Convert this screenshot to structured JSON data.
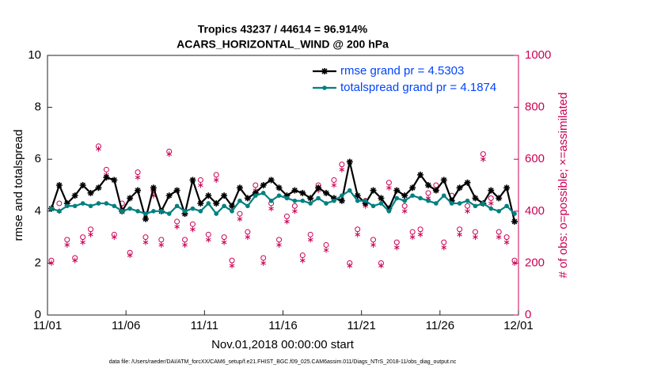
{
  "chart_data": {
    "type": "line",
    "title": [
      "Tropics 43237 / 44614 = 96.914%",
      "ACARS_HORIZONTAL_WIND @ 200 hPa"
    ],
    "x_label": "Nov.01,2018 00:00:00 start",
    "y_label": "rmse and totalspread",
    "y2_label": "# of obs: o=possible; ×=assimilated",
    "footnote": "data file: /Users/raeder/DAI/ATM_forcXX/CAM6_setup/f.e21.FHIST_BGC.f09_025.CAM6assim.011/Diags_NTrS_2018-11/obs_diag_output.nc",
    "xlim": [
      0,
      30
    ],
    "xticks": [
      {
        "value": 0,
        "label": "11/01"
      },
      {
        "value": 5,
        "label": "11/06"
      },
      {
        "value": 10,
        "label": "11/11"
      },
      {
        "value": 15,
        "label": "11/16"
      },
      {
        "value": 20,
        "label": "11/21"
      },
      {
        "value": 25,
        "label": "11/26"
      },
      {
        "value": 30,
        "label": "12/01"
      }
    ],
    "ylim": [
      0,
      10
    ],
    "yticks": [
      0,
      2,
      4,
      6,
      8,
      10
    ],
    "y2lim": [
      0,
      1000
    ],
    "y2ticks": [
      0,
      200,
      400,
      600,
      800,
      1000
    ],
    "y2_color": "#cc0055",
    "x": [
      0.25,
      0.75,
      1.25,
      1.75,
      2.25,
      2.75,
      3.25,
      3.75,
      4.25,
      4.75,
      5.25,
      5.75,
      6.25,
      6.75,
      7.25,
      7.75,
      8.25,
      8.75,
      9.25,
      9.75,
      10.25,
      10.75,
      11.25,
      11.75,
      12.25,
      12.75,
      13.25,
      13.75,
      14.25,
      14.75,
      15.25,
      15.75,
      16.25,
      16.75,
      17.25,
      17.75,
      18.25,
      18.75,
      19.25,
      19.75,
      20.25,
      20.75,
      21.25,
      21.75,
      22.25,
      22.75,
      23.25,
      23.75,
      24.25,
      24.75,
      25.25,
      25.75,
      26.25,
      26.75,
      27.25,
      27.75,
      28.25,
      28.75,
      29.25,
      29.75
    ],
    "series": [
      {
        "name": "rmse grand pr = 4.5303",
        "color": "#000000",
        "marker": "star",
        "values": [
          4.1,
          5.0,
          4.3,
          4.6,
          5.0,
          4.7,
          4.9,
          5.3,
          5.2,
          4.0,
          4.5,
          4.8,
          3.7,
          4.9,
          4.0,
          4.6,
          4.8,
          3.9,
          5.2,
          4.3,
          4.6,
          4.3,
          4.6,
          4.2,
          4.9,
          4.5,
          4.7,
          5.0,
          5.2,
          4.9,
          4.6,
          4.8,
          4.7,
          4.5,
          4.9,
          4.7,
          4.5,
          4.4,
          5.9,
          4.6,
          4.3,
          4.8,
          4.5,
          4.1,
          4.8,
          4.6,
          4.9,
          5.4,
          5.0,
          4.8,
          5.2,
          4.4,
          4.9,
          5.1,
          4.5,
          4.3,
          4.8,
          4.5,
          4.9,
          3.6
        ]
      },
      {
        "name": "totalspread grand pr = 4.1874",
        "color": "#008080",
        "marker": "dot",
        "values": [
          4.1,
          4.0,
          4.2,
          4.2,
          4.3,
          4.2,
          4.3,
          4.3,
          4.2,
          4.0,
          4.1,
          4.0,
          3.9,
          4.0,
          4.0,
          3.9,
          4.2,
          4.0,
          4.1,
          4.0,
          4.3,
          3.9,
          4.2,
          4.0,
          4.4,
          4.2,
          4.6,
          4.7,
          4.4,
          4.6,
          4.5,
          4.4,
          4.4,
          4.3,
          4.5,
          4.3,
          4.4,
          4.6,
          4.8,
          4.4,
          4.4,
          4.2,
          4.3,
          4.0,
          4.5,
          4.4,
          4.6,
          4.5,
          4.4,
          4.3,
          4.6,
          4.3,
          4.3,
          4.4,
          4.2,
          4.3,
          4.1,
          4.0,
          4.2,
          3.9
        ]
      }
    ],
    "obs_series": [
      {
        "marker": "circle",
        "axis": "y2",
        "color": "#cc0055",
        "values": [
          210,
          430,
          290,
          220,
          300,
          330,
          650,
          560,
          310,
          430,
          240,
          550,
          300,
          480,
          290,
          630,
          360,
          290,
          350,
          520,
          310,
          540,
          300,
          210,
          390,
          320,
          500,
          220,
          430,
          290,
          380,
          420,
          230,
          310,
          500,
          270,
          520,
          580,
          200,
          330,
          440,
          290,
          200,
          510,
          280,
          420,
          320,
          330,
          470,
          500,
          280,
          460,
          330,
          420,
          320,
          620,
          450,
          320,
          300,
          210
        ]
      },
      {
        "marker": "asterisk",
        "axis": "y2",
        "color": "#cc0055",
        "values": [
          200,
          400,
          270,
          210,
          280,
          310,
          640,
          540,
          300,
          410,
          230,
          530,
          280,
          460,
          270,
          620,
          340,
          270,
          330,
          500,
          290,
          520,
          280,
          190,
          370,
          300,
          480,
          200,
          410,
          270,
          360,
          400,
          210,
          290,
          480,
          250,
          500,
          560,
          190,
          310,
          420,
          270,
          190,
          490,
          260,
          400,
          300,
          310,
          450,
          480,
          260,
          440,
          310,
          400,
          300,
          600,
          430,
          300,
          280,
          200
        ]
      }
    ],
    "legend_text_color": "#0044ff",
    "legend": "upper right"
  }
}
